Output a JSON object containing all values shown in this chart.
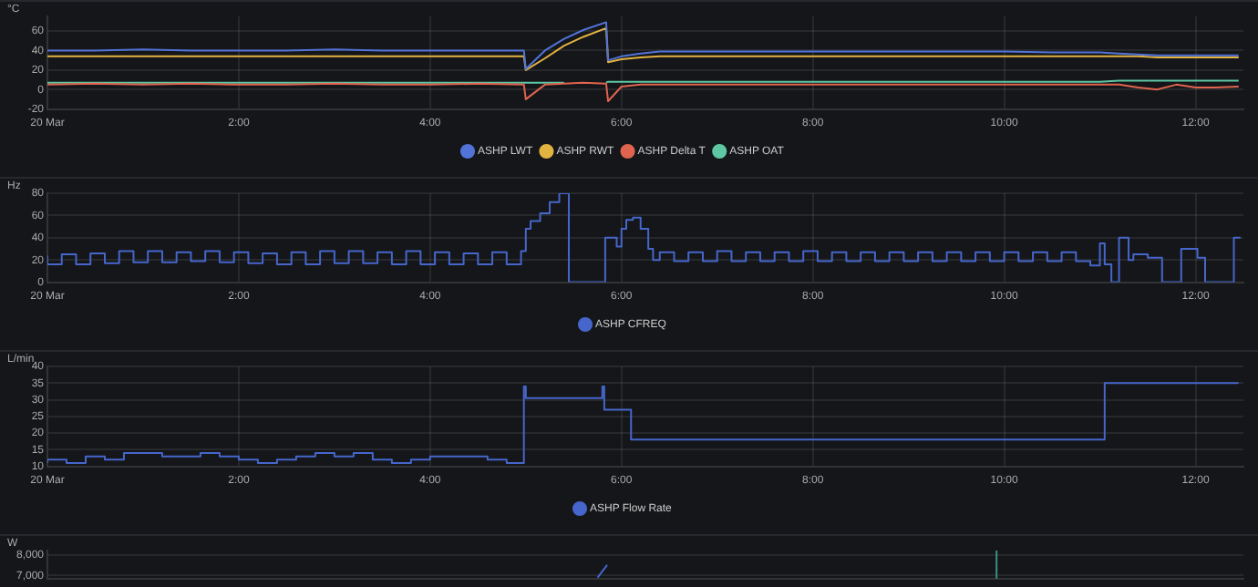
{
  "chart_data": [
    {
      "type": "line",
      "ylabel": "°C",
      "x": [
        0,
        0.5,
        1,
        1.5,
        2,
        2.5,
        3,
        3.5,
        4,
        4.5,
        4.98,
        5.0,
        5.2,
        5.4,
        5.6,
        5.84,
        5.86,
        6.0,
        6.2,
        6.4,
        7,
        8,
        9,
        10,
        10.5,
        11,
        11.2,
        11.4,
        11.6,
        11.8,
        12,
        12.2,
        12.45
      ],
      "series": [
        {
          "name": "ASHP LWT",
          "color": "#5273d8",
          "values": [
            40,
            40,
            41,
            40,
            40,
            40,
            41,
            40,
            40,
            40,
            40,
            21,
            40,
            52,
            61,
            69,
            30,
            34,
            37,
            39,
            39,
            39,
            39,
            39,
            38,
            38,
            37,
            36,
            35,
            35,
            35,
            35,
            35
          ]
        },
        {
          "name": "ASHP RWT",
          "color": "#e3b341",
          "values": [
            34,
            34,
            34,
            34,
            34,
            34,
            34,
            34,
            34,
            34,
            34,
            20,
            32,
            45,
            54,
            63,
            28,
            31,
            33,
            34,
            34,
            34,
            34,
            34,
            34,
            34,
            34,
            34,
            33,
            33,
            33,
            33,
            33
          ]
        },
        {
          "name": "ASHP Delta T",
          "color": "#e0644f",
          "values": [
            5,
            6,
            5,
            6,
            5,
            5,
            6,
            5,
            5,
            6,
            5,
            -10,
            5,
            6,
            7,
            6,
            -12,
            3,
            5,
            5,
            5,
            5,
            5,
            5,
            5,
            5,
            5,
            2,
            0,
            5,
            2,
            2,
            3
          ]
        },
        {
          "name": "ASHP OAT",
          "color": "#5ec7a4",
          "values": [
            7,
            7,
            7,
            7,
            7,
            7,
            7,
            7,
            7,
            7,
            7,
            7,
            7,
            7,
            null,
            7,
            8,
            8,
            8,
            8,
            8,
            8,
            8,
            8,
            8,
            8,
            9,
            9,
            9,
            9,
            9,
            9,
            9
          ]
        }
      ],
      "xlim": [
        0,
        12.5
      ],
      "xticks": [
        {
          "value": 0,
          "label": "20 Mar"
        },
        {
          "value": 2,
          "label": "2:00"
        },
        {
          "value": 4,
          "label": "4:00"
        },
        {
          "value": 6,
          "label": "6:00"
        },
        {
          "value": 8,
          "label": "8:00"
        },
        {
          "value": 10,
          "label": "10:00"
        },
        {
          "value": 12,
          "label": "12:00"
        }
      ],
      "ylim": [
        -20,
        75
      ],
      "yticks": [
        -20,
        0,
        20,
        40,
        60
      ],
      "grid": true,
      "legend": "bottom"
    },
    {
      "type": "step",
      "ylabel": "Hz",
      "x": [
        0,
        0.15,
        0.3,
        0.45,
        0.6,
        0.75,
        0.9,
        1.05,
        1.2,
        1.35,
        1.5,
        1.65,
        1.8,
        1.95,
        2.1,
        2.25,
        2.4,
        2.55,
        2.7,
        2.85,
        3,
        3.15,
        3.3,
        3.45,
        3.6,
        3.75,
        3.9,
        4.05,
        4.2,
        4.35,
        4.5,
        4.65,
        4.8,
        4.95,
        5.0,
        5.05,
        5.15,
        5.25,
        5.35,
        5.45,
        5.83,
        5.95,
        6.0,
        6.05,
        6.12,
        6.2,
        6.28,
        6.33,
        6.4,
        6.55,
        6.7,
        6.85,
        7,
        7.15,
        7.3,
        7.45,
        7.6,
        7.75,
        7.9,
        8.05,
        8.2,
        8.35,
        8.5,
        8.65,
        8.8,
        8.95,
        9.1,
        9.25,
        9.4,
        9.55,
        9.7,
        9.85,
        10,
        10.15,
        10.3,
        10.45,
        10.6,
        10.75,
        10.9,
        11.0,
        11.05,
        11.12,
        11.2,
        11.3,
        11.35,
        11.5,
        11.65,
        11.85,
        12.02,
        12.1,
        12.4,
        12.47
      ],
      "series": [
        {
          "name": "ASHP CFREQ",
          "color": "#4666cc",
          "values": [
            24,
            16,
            25,
            16,
            26,
            17,
            28,
            18,
            28,
            18,
            27,
            19,
            28,
            18,
            27,
            17,
            26,
            16,
            27,
            16,
            28,
            17,
            28,
            17,
            27,
            16,
            28,
            16,
            27,
            16,
            26,
            16,
            27,
            16,
            28,
            48,
            55,
            62,
            72,
            80,
            0,
            40,
            32,
            48,
            56,
            58,
            48,
            30,
            20,
            27,
            19,
            27,
            19,
            28,
            19,
            27,
            19,
            27,
            19,
            28,
            19,
            27,
            19,
            27,
            19,
            27,
            19,
            27,
            19,
            27,
            19,
            27,
            19,
            27,
            19,
            27,
            19,
            27,
            19,
            15,
            35,
            16,
            0,
            40,
            20,
            25,
            22,
            0,
            30,
            22,
            0,
            40
          ]
        }
      ],
      "xlim": [
        0,
        12.5
      ],
      "xticks": [
        {
          "value": 0,
          "label": "20 Mar"
        },
        {
          "value": 2,
          "label": "2:00"
        },
        {
          "value": 4,
          "label": "4:00"
        },
        {
          "value": 6,
          "label": "6:00"
        },
        {
          "value": 8,
          "label": "8:00"
        },
        {
          "value": 10,
          "label": "10:00"
        },
        {
          "value": 12,
          "label": "12:00"
        }
      ],
      "ylim": [
        0,
        80
      ],
      "yticks": [
        0,
        20,
        40,
        60,
        80
      ],
      "grid": true,
      "legend": "bottom"
    },
    {
      "type": "step",
      "ylabel": "L/min",
      "x": [
        0,
        0.2,
        0.4,
        0.6,
        0.8,
        1.0,
        1.2,
        1.4,
        1.6,
        1.8,
        2.0,
        2.2,
        2.4,
        2.6,
        2.8,
        3.0,
        3.2,
        3.4,
        3.6,
        3.8,
        4.0,
        4.2,
        4.4,
        4.6,
        4.8,
        4.98,
        5.0,
        5.02,
        5.8,
        5.82,
        5.84,
        6.1,
        6.12,
        7,
        8,
        9,
        10,
        11.05,
        11.07,
        11.5,
        12,
        12.45
      ],
      "series": [
        {
          "name": "ASHP Flow Rate",
          "color": "#4666cc",
          "values": [
            11,
            12,
            11,
            13,
            12,
            14,
            14,
            13,
            13,
            14,
            13,
            12,
            11,
            12,
            13,
            14,
            13,
            14,
            12,
            11,
            12,
            13,
            13,
            13,
            12,
            11,
            34,
            30.5,
            30.5,
            34,
            27,
            27,
            18,
            18,
            18,
            18,
            18,
            18,
            35,
            35,
            35,
            35
          ]
        }
      ],
      "xlim": [
        0,
        12.5
      ],
      "xticks": [
        {
          "value": 0,
          "label": "20 Mar"
        },
        {
          "value": 2,
          "label": "2:00"
        },
        {
          "value": 4,
          "label": "4:00"
        },
        {
          "value": 6,
          "label": "6:00"
        },
        {
          "value": 8,
          "label": "8:00"
        },
        {
          "value": 10,
          "label": "10:00"
        },
        {
          "value": 12,
          "label": "12:00"
        }
      ],
      "ylim": [
        10,
        40
      ],
      "yticks": [
        10,
        15,
        20,
        25,
        30,
        35,
        40
      ],
      "grid": true,
      "legend": "bottom"
    },
    {
      "type": "line",
      "ylabel": "W",
      "x": [
        5.75,
        5.85
      ],
      "series": [
        {
          "color": "#4666cc",
          "values": [
            6900,
            7500
          ]
        }
      ],
      "xlim": [
        0,
        12.5
      ],
      "ylim": [
        6850,
        8200
      ],
      "yticks": [
        {
          "value": 7000,
          "label": "7,000"
        },
        {
          "value": 8000,
          "label": "8,000"
        }
      ],
      "grid": true,
      "tick_labels": "y",
      "ref_lines": [
        {
          "axis": "x",
          "value": 9.92,
          "color": "#3d8f86"
        }
      ]
    }
  ]
}
